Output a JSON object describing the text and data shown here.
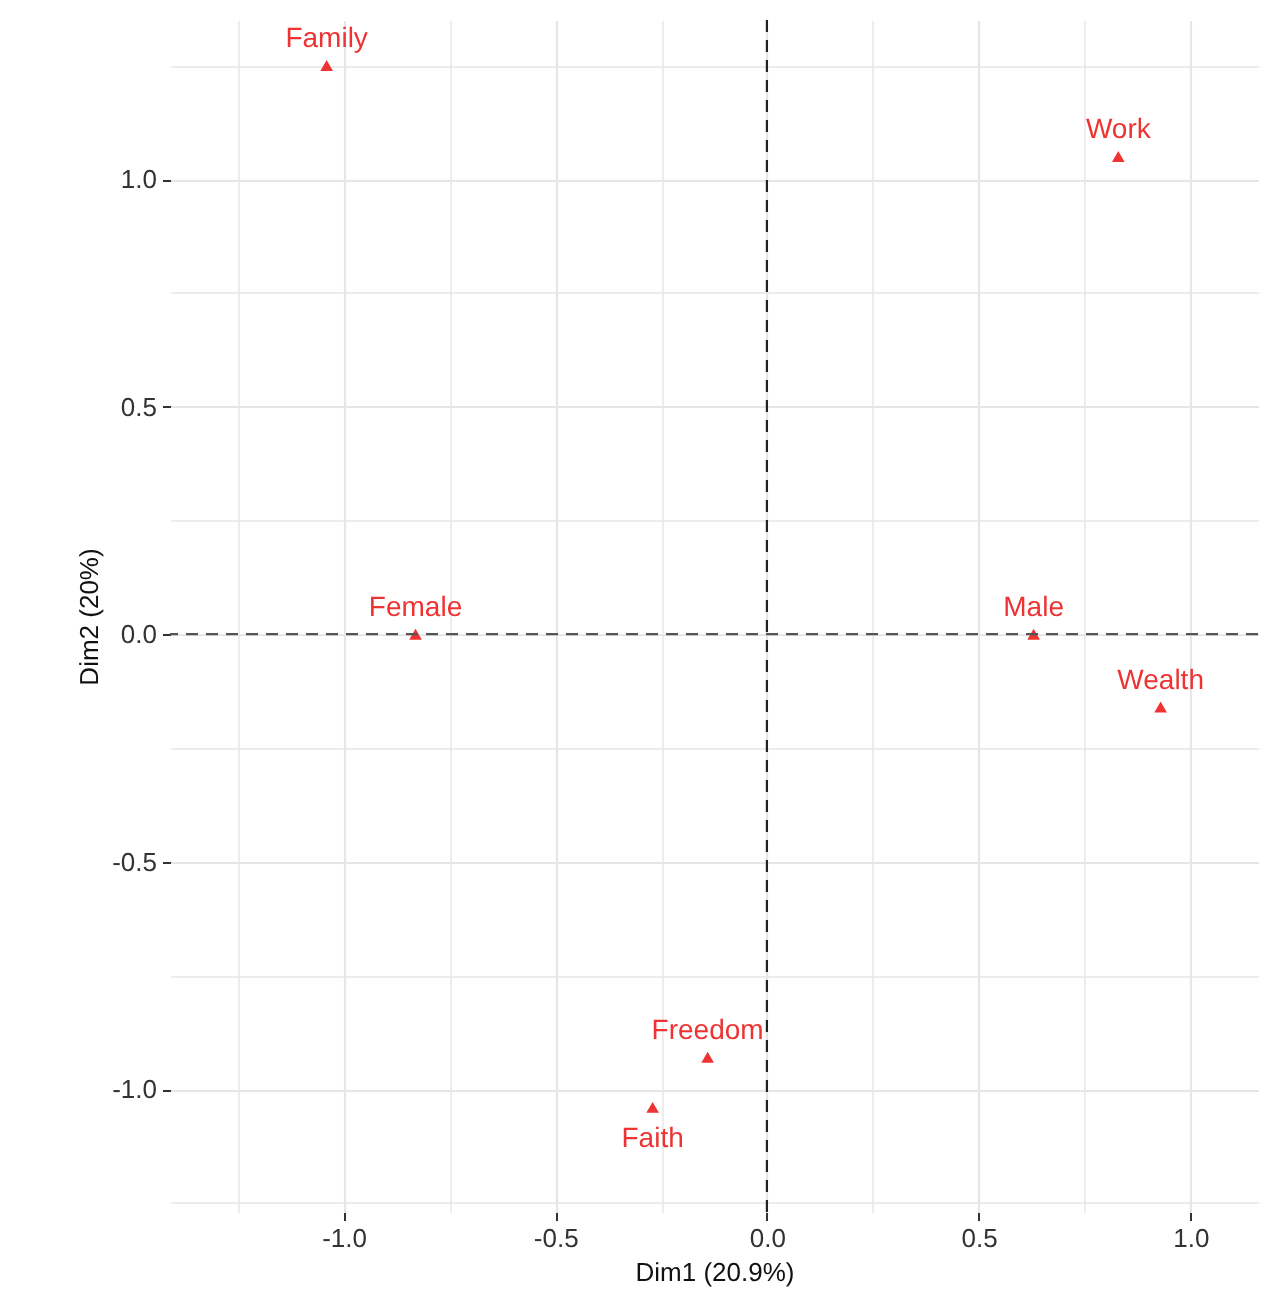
{
  "chart_data": {
    "type": "scatter",
    "xlabel": "Dim1 (20.9%)",
    "ylabel": "Dim2 (20%)",
    "xlim": [
      -1.41,
      1.16
    ],
    "ylim": [
      -1.27,
      1.35
    ],
    "xticks": [
      {
        "value": -1,
        "label": "-1.0"
      },
      -0.5,
      {
        "value": 0,
        "label": "0.0"
      },
      0.5,
      {
        "value": 1,
        "label": "1.0"
      }
    ],
    "yticks": [
      {
        "value": -1,
        "label": "-1.0"
      },
      -0.5,
      {
        "value": 0,
        "label": "0.0"
      },
      0.5,
      {
        "value": 1,
        "label": "1.0"
      }
    ],
    "grid": true,
    "marker": "triangle",
    "series": [
      {
        "name": "Family",
        "color": "#ee3333",
        "x": [
          -1.04
        ],
        "values": [
          1.25
        ]
      },
      {
        "name": "Work",
        "color": "#ee3333",
        "x": [
          0.83
        ],
        "values": [
          1.05
        ]
      },
      {
        "name": "Female",
        "color": "#ee3333",
        "x": [
          -0.83
        ],
        "values": [
          0.0
        ]
      },
      {
        "name": "Male",
        "color": "#ee3333",
        "x": [
          0.63
        ],
        "values": [
          0.0
        ]
      },
      {
        "name": "Wealth",
        "color": "#ee3333",
        "x": [
          0.93
        ],
        "values": [
          -0.16
        ]
      },
      {
        "name": "Freedom",
        "color": "#ee3333",
        "x": [
          -0.14
        ],
        "values": [
          -0.93
        ]
      },
      {
        "name": "Faith",
        "color": "#ee3333",
        "x": [
          -0.27
        ],
        "values": [
          -1.04
        ]
      }
    ],
    "ref_lines": [
      {
        "axis": "x",
        "value": 0,
        "color": "#222222",
        "line_style": "dashed"
      },
      {
        "axis": "y",
        "value": 0,
        "color": "#555555",
        "line_style": "dashed"
      }
    ]
  }
}
